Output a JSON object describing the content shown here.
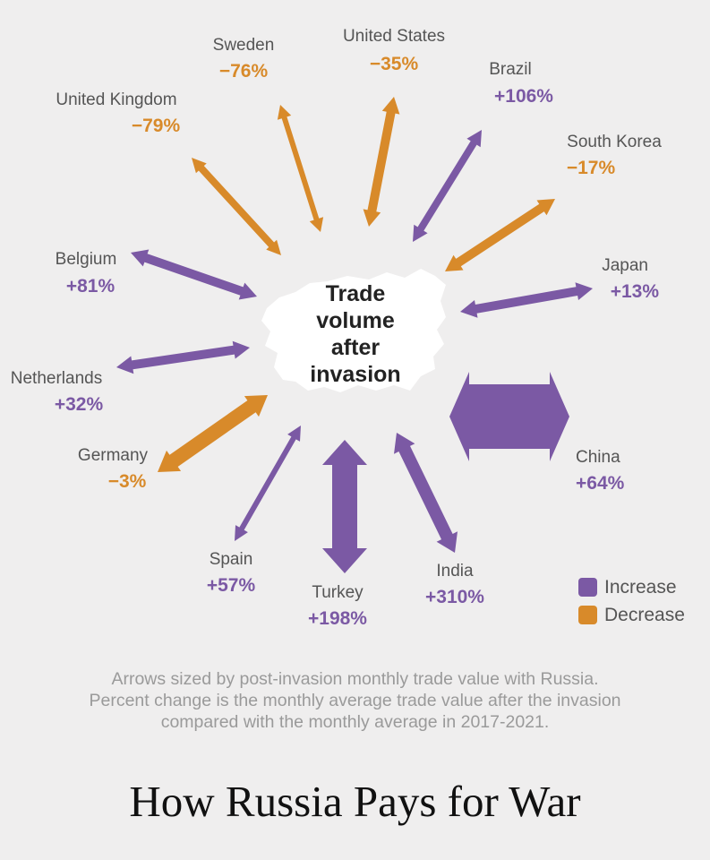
{
  "chart_data": {
    "type": "radial-arrows",
    "center_label": [
      "Trade",
      "volume",
      "after",
      "invasion"
    ],
    "colors": {
      "increase": "#7b59a4",
      "decrease": "#d88a2a"
    },
    "legend": {
      "increase": "Increase",
      "decrease": "Decrease"
    },
    "countries": [
      {
        "name": "United States",
        "change": "−35%",
        "percent_change": -35,
        "direction": "decrease"
      },
      {
        "name": "Brazil",
        "change": "+106%",
        "percent_change": 106,
        "direction": "increase"
      },
      {
        "name": "South Korea",
        "change": "−17%",
        "percent_change": -17,
        "direction": "decrease"
      },
      {
        "name": "Japan",
        "change": "+13%",
        "percent_change": 13,
        "direction": "increase"
      },
      {
        "name": "China",
        "change": "+64%",
        "percent_change": 64,
        "direction": "increase"
      },
      {
        "name": "India",
        "change": "+310%",
        "percent_change": 310,
        "direction": "increase"
      },
      {
        "name": "Turkey",
        "change": "+198%",
        "percent_change": 198,
        "direction": "increase"
      },
      {
        "name": "Spain",
        "change": "+57%",
        "percent_change": 57,
        "direction": "increase"
      },
      {
        "name": "Germany",
        "change": "−3%",
        "percent_change": -3,
        "direction": "decrease"
      },
      {
        "name": "Netherlands",
        "change": "+32%",
        "percent_change": 32,
        "direction": "increase"
      },
      {
        "name": "Belgium",
        "change": "+81%",
        "percent_change": 81,
        "direction": "increase"
      },
      {
        "name": "United Kingdom",
        "change": "−79%",
        "percent_change": -79,
        "direction": "decrease"
      },
      {
        "name": "Sweden",
        "change": "−76%",
        "percent_change": -76,
        "direction": "decrease"
      }
    ]
  },
  "note": [
    "Arrows sized by post-invasion monthly trade value with Russia.",
    "Percent change is the monthly average trade value after the invasion",
    "compared with the monthly average in 2017-2021."
  ],
  "headline": "How Russia Pays for War"
}
